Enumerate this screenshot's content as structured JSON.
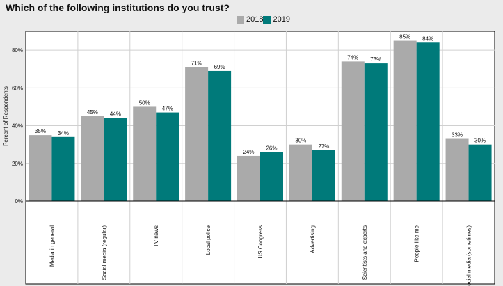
{
  "chart_data": {
    "type": "bar",
    "title": "Which of the following institutions do you trust?",
    "xlabel": "",
    "ylabel": "Percent of Respondents",
    "ylim": [
      0,
      90
    ],
    "yticks": [
      "0%",
      "20%",
      "40%",
      "60%",
      "80%"
    ],
    "ytick_values": [
      0,
      20,
      40,
      60,
      80
    ],
    "categories": [
      "Media in general",
      "Social media (regular)",
      "TV news",
      "Local police",
      "US Congress",
      "Advertising",
      "Scientists and experts",
      "People like me",
      "Social media (sometimes)"
    ],
    "series": [
      {
        "name": "2018",
        "color": "#aaaaaa",
        "values": [
          35,
          45,
          50,
          71,
          24,
          30,
          74,
          85,
          33
        ],
        "labels": [
          "35%",
          "45%",
          "50%",
          "71%",
          "24%",
          "30%",
          "74%",
          "85%",
          "33%"
        ]
      },
      {
        "name": "2019",
        "color": "#007a7a",
        "values": [
          34,
          44,
          47,
          69,
          26,
          27,
          73,
          84,
          30
        ],
        "labels": [
          "34%",
          "44%",
          "47%",
          "69%",
          "26%",
          "27%",
          "73%",
          "84%",
          "30%"
        ]
      }
    ],
    "grid": true,
    "legend_position": "top-center"
  }
}
